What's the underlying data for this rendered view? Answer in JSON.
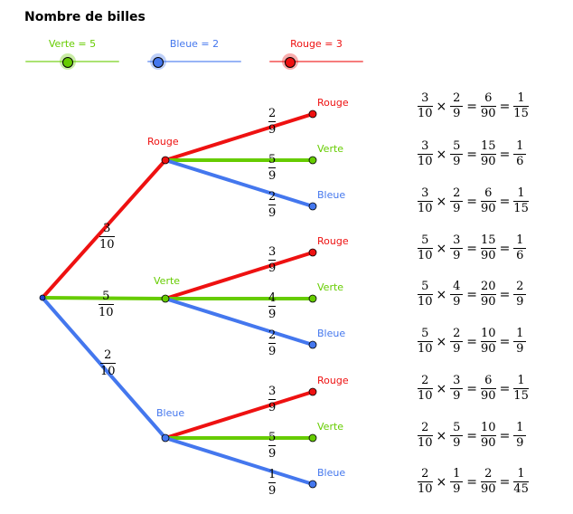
{
  "title": "Nombre de billes",
  "colors": {
    "verte": "#66cc00",
    "bleue": "#4477ee",
    "rouge": "#ee1111"
  },
  "sliders": [
    {
      "label": "Verte = 5",
      "color": "#66cc00",
      "value_fraction": 0.45
    },
    {
      "label": "Bleue = 2",
      "color": "#4477ee",
      "value_fraction": 0.12
    },
    {
      "label": "Rouge = 3",
      "color": "#ee1111",
      "value_fraction": 0.22
    }
  ],
  "level1": [
    {
      "name": "Rouge",
      "num": "3",
      "den": "10",
      "color": "#ee1111"
    },
    {
      "name": "Verte",
      "num": "5",
      "den": "10",
      "color": "#66cc00"
    },
    {
      "name": "Bleue",
      "num": "2",
      "den": "10",
      "color": "#4477ee"
    }
  ],
  "level2": [
    [
      {
        "name": "Rouge",
        "num": "2",
        "den": "9",
        "color": "#ee1111"
      },
      {
        "name": "Verte",
        "num": "5",
        "den": "9",
        "color": "#66cc00"
      },
      {
        "name": "Bleue",
        "num": "2",
        "den": "9",
        "color": "#4477ee"
      }
    ],
    [
      {
        "name": "Rouge",
        "num": "3",
        "den": "9",
        "color": "#ee1111"
      },
      {
        "name": "Verte",
        "num": "4",
        "den": "9",
        "color": "#66cc00"
      },
      {
        "name": "Bleue",
        "num": "2",
        "den": "9",
        "color": "#4477ee"
      }
    ],
    [
      {
        "name": "Rouge",
        "num": "3",
        "den": "9",
        "color": "#ee1111"
      },
      {
        "name": "Verte",
        "num": "5",
        "den": "9",
        "color": "#66cc00"
      },
      {
        "name": "Bleue",
        "num": "1",
        "den": "9",
        "color": "#4477ee"
      }
    ]
  ],
  "results": [
    {
      "a": [
        "3",
        "10"
      ],
      "b": [
        "2",
        "9"
      ],
      "c": [
        "6",
        "90"
      ],
      "d": [
        "1",
        "15"
      ]
    },
    {
      "a": [
        "3",
        "10"
      ],
      "b": [
        "5",
        "9"
      ],
      "c": [
        "15",
        "90"
      ],
      "d": [
        "1",
        "6"
      ]
    },
    {
      "a": [
        "3",
        "10"
      ],
      "b": [
        "2",
        "9"
      ],
      "c": [
        "6",
        "90"
      ],
      "d": [
        "1",
        "15"
      ]
    },
    {
      "a": [
        "5",
        "10"
      ],
      "b": [
        "3",
        "9"
      ],
      "c": [
        "15",
        "90"
      ],
      "d": [
        "1",
        "6"
      ]
    },
    {
      "a": [
        "5",
        "10"
      ],
      "b": [
        "4",
        "9"
      ],
      "c": [
        "20",
        "90"
      ],
      "d": [
        "2",
        "9"
      ]
    },
    {
      "a": [
        "5",
        "10"
      ],
      "b": [
        "2",
        "9"
      ],
      "c": [
        "10",
        "90"
      ],
      "d": [
        "1",
        "9"
      ]
    },
    {
      "a": [
        "2",
        "10"
      ],
      "b": [
        "3",
        "9"
      ],
      "c": [
        "6",
        "90"
      ],
      "d": [
        "1",
        "15"
      ]
    },
    {
      "a": [
        "2",
        "10"
      ],
      "b": [
        "5",
        "9"
      ],
      "c": [
        "10",
        "90"
      ],
      "d": [
        "1",
        "9"
      ]
    },
    {
      "a": [
        "2",
        "10"
      ],
      "b": [
        "1",
        "9"
      ],
      "c": [
        "2",
        "90"
      ],
      "d": [
        "1",
        "45"
      ]
    }
  ],
  "symbols": {
    "times": "×",
    "equals": "="
  }
}
